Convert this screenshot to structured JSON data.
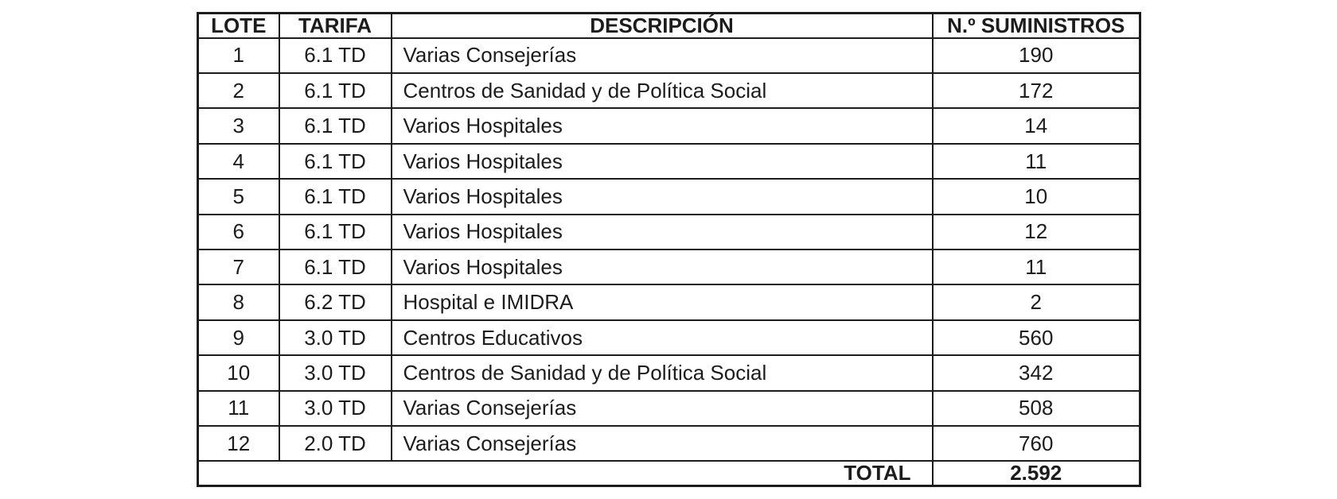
{
  "table": {
    "columns": [
      {
        "key": "lote",
        "label": "LOTE"
      },
      {
        "key": "tarifa",
        "label": "TARIFA"
      },
      {
        "key": "descripcion",
        "label": "DESCRIPCIÓN"
      },
      {
        "key": "suministros",
        "label": "N.º SUMINISTROS"
      }
    ],
    "rows": [
      {
        "lote": "1",
        "tarifa": "6.1 TD",
        "descripcion": "Varias Consejerías",
        "suministros": "190"
      },
      {
        "lote": "2",
        "tarifa": "6.1 TD",
        "descripcion": "Centros de Sanidad y de Política Social",
        "suministros": "172"
      },
      {
        "lote": "3",
        "tarifa": "6.1 TD",
        "descripcion": "Varios Hospitales",
        "suministros": "14"
      },
      {
        "lote": "4",
        "tarifa": "6.1 TD",
        "descripcion": "Varios Hospitales",
        "suministros": "11"
      },
      {
        "lote": "5",
        "tarifa": "6.1 TD",
        "descripcion": "Varios Hospitales",
        "suministros": "10"
      },
      {
        "lote": "6",
        "tarifa": "6.1 TD",
        "descripcion": "Varios Hospitales",
        "suministros": "12"
      },
      {
        "lote": "7",
        "tarifa": "6.1 TD",
        "descripcion": "Varios Hospitales",
        "suministros": "11"
      },
      {
        "lote": "8",
        "tarifa": "6.2 TD",
        "descripcion": "Hospital e IMIDRA",
        "suministros": "2"
      },
      {
        "lote": "9",
        "tarifa": "3.0 TD",
        "descripcion": "Centros Educativos",
        "suministros": "560"
      },
      {
        "lote": "10",
        "tarifa": "3.0 TD",
        "descripcion": "Centros de Sanidad y de Política Social",
        "suministros": "342"
      },
      {
        "lote": "11",
        "tarifa": "3.0 TD",
        "descripcion": "Varias Consejerías",
        "suministros": "508"
      },
      {
        "lote": "12",
        "tarifa": "2.0 TD",
        "descripcion": "Varias Consejerías",
        "suministros": "760"
      }
    ],
    "total": {
      "label": "TOTAL",
      "value": "2.592"
    }
  },
  "colors": {
    "background": "#ffffff",
    "border": "#1c1c1c",
    "text": "#1c1c1c"
  }
}
